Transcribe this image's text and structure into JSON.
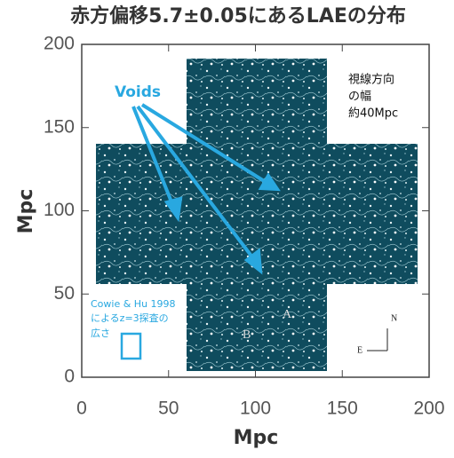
{
  "chart_data": {
    "type": "image",
    "title": "赤方偏移5.7±0.05にあるLAEの分布",
    "x_label": "Mpc",
    "y_label": "Mpc",
    "xlim": [
      0,
      200
    ],
    "ylim": [
      0,
      200
    ],
    "xticks": [
      0,
      50,
      100,
      150,
      200
    ],
    "yticks": [
      0,
      50,
      100,
      150,
      200
    ],
    "annotations": {
      "voids": "Voids",
      "depth": [
        "視線方向",
        "の幅",
        "約40Mpc"
      ],
      "survey": [
        "Cowie & Hu 1998",
        "によるz=3探査の",
        "広さ"
      ],
      "north": "N",
      "east": "E",
      "region_a": "A",
      "region_b": "B"
    }
  }
}
